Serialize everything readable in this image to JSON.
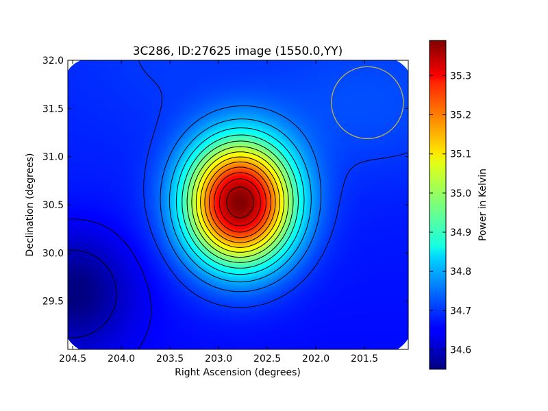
{
  "chart_data": {
    "type": "heatmap",
    "title": "3C286, ID:27625 image (1550.0,YY)",
    "xlabel": "Right Ascension (degrees)",
    "ylabel": "Declination (degrees)",
    "colorbar_label": "Power in Kelvin",
    "xlim": [
      204.55,
      201.05
    ],
    "ylim": [
      29.0,
      32.0
    ],
    "xticks": [
      "204.5",
      "204.0",
      "203.5",
      "203.0",
      "202.5",
      "202.0",
      "201.5"
    ],
    "yticks": [
      "29.5",
      "30.0",
      "30.5",
      "31.0",
      "31.5",
      "32.0"
    ],
    "colorbar_range": [
      34.55,
      35.39
    ],
    "colorbar_ticks": [
      "34.6",
      "34.7",
      "34.8",
      "34.9",
      "35.0",
      "35.1",
      "35.2",
      "35.3"
    ],
    "colormap": "jet",
    "peak": {
      "ra": 202.78,
      "dec": 30.52,
      "value": 35.39
    },
    "background_level": 34.68,
    "cold_corner": {
      "ra": 204.5,
      "dec": 29.6,
      "value": 34.56
    },
    "beam_circle": {
      "ra": 201.47,
      "dec": 31.56,
      "radius_deg": 0.37,
      "color": "#c8b43c"
    },
    "contour_color": "#000000"
  }
}
